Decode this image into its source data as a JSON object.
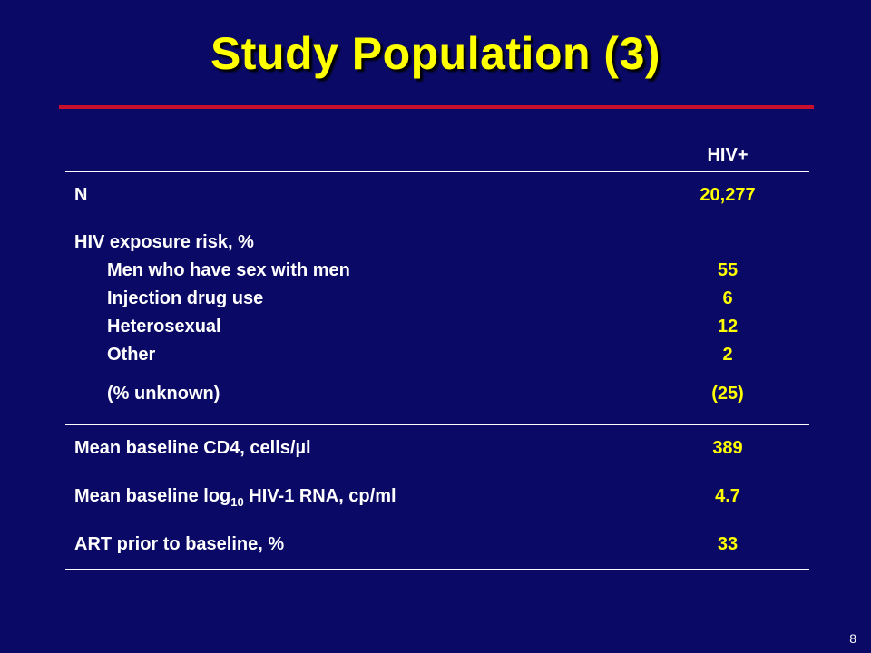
{
  "slide": {
    "title": "Study Population (3)",
    "page_number": "8"
  },
  "table": {
    "column_header": "HIV+",
    "rows": [
      {
        "label": "N",
        "value": "20,277"
      },
      {
        "label": "HIV exposure risk, %",
        "value": ""
      },
      {
        "label": "Men who have sex with men",
        "value": "55"
      },
      {
        "label": "Injection drug use",
        "value": "6"
      },
      {
        "label": "Heterosexual",
        "value": "12"
      },
      {
        "label": "Other",
        "value": "2"
      },
      {
        "label": "(% unknown)",
        "value": "(25)"
      },
      {
        "label": "Mean baseline CD4, cells/µl",
        "value": "389"
      },
      {
        "label_pre": "Mean baseline log",
        "label_sub": "10",
        "label_post": " HIV-1 RNA, cp/ml",
        "value": "4.7"
      },
      {
        "label": "ART prior to baseline, %",
        "value": "33"
      }
    ]
  },
  "colors": {
    "background": "#0a0a66",
    "title": "#ffff00",
    "rule": "#c8102e",
    "text": "#ffffff",
    "value": "#ffff00"
  }
}
